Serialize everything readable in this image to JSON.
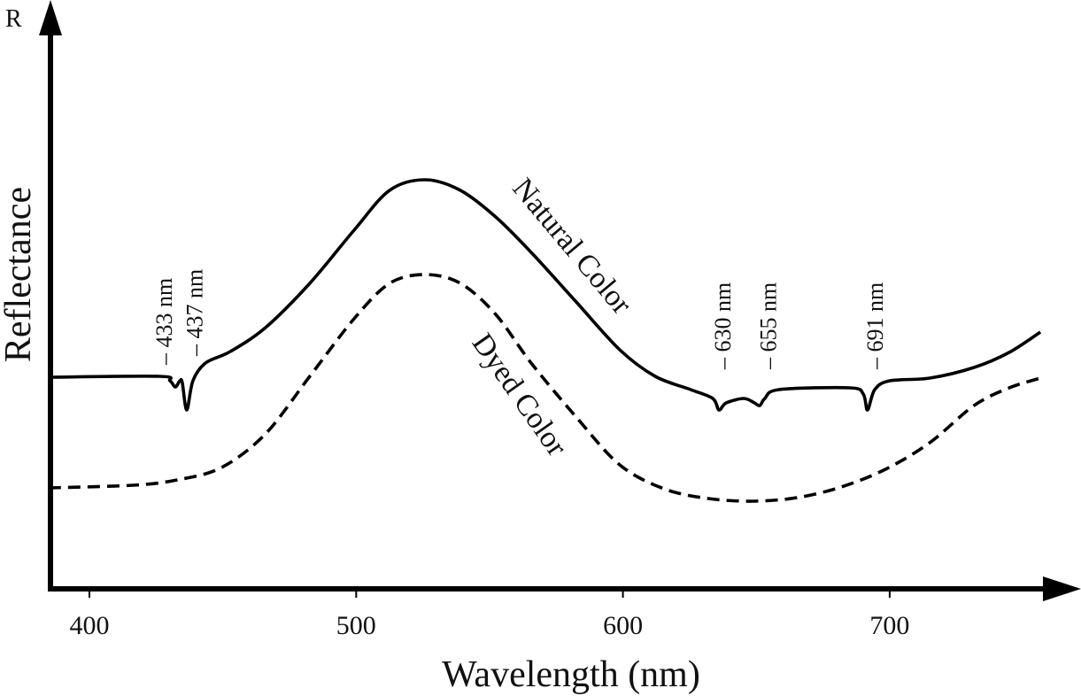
{
  "chart_data": {
    "type": "line",
    "title": "",
    "xlabel": "Wavelength (nm)",
    "ylabel": "Reflectance",
    "y_axis_symbol": "R",
    "xlim": [
      385,
      757
    ],
    "ylim": [
      0,
      100
    ],
    "y_units": "relative (no ticks shown)",
    "x_ticks": [
      400,
      500,
      600,
      700
    ],
    "x_tick_labels": [
      "400",
      "500",
      "600",
      "700"
    ],
    "grid": false,
    "series": [
      {
        "name": "Natural Color",
        "style": "solid",
        "color": "#000000",
        "x": [
          384.7,
          426.2,
          430.2,
          432.2,
          433.9,
          434.8,
          436.5,
          438.8,
          443.5,
          452.8,
          466.0,
          482.6,
          499.2,
          512.5,
          525.8,
          539.1,
          552.3,
          565.6,
          582.2,
          598.8,
          612.1,
          625.4,
          633.7,
          636.0,
          638.7,
          645.3,
          649.3,
          651.3,
          653.2,
          658.5,
          685.1,
          690.1,
          691.7,
          694.4,
          700.0,
          715.0,
          731.6,
          744.8,
          756.5
        ],
        "y": [
          47.8,
          48.0,
          47.0,
          45.6,
          47.0,
          46.6,
          40.4,
          47.0,
          51.0,
          53.6,
          59.0,
          69.0,
          81.0,
          90.0,
          92.4,
          90.0,
          84.0,
          76.0,
          65.0,
          54.0,
          48.0,
          45.0,
          43.0,
          40.4,
          42.0,
          43.0,
          42.0,
          41.4,
          43.0,
          45.0,
          45.4,
          44.0,
          40.4,
          45.0,
          47.0,
          47.6,
          50.0,
          53.4,
          58.0
        ]
      },
      {
        "name": "Dyed Color",
        "style": "dashed",
        "color": "#000000",
        "x": [
          384.7,
          416.3,
          432.9,
          449.5,
          466.0,
          482.6,
          499.2,
          512.5,
          525.8,
          539.1,
          552.3,
          565.6,
          582.2,
          598.8,
          615.4,
          632.0,
          648.6,
          665.2,
          681.8,
          698.4,
          715.0,
          731.6,
          744.8,
          756.5
        ],
        "y": [
          22.8,
          23.4,
          24.6,
          27.4,
          35.0,
          48.0,
          61.0,
          69.0,
          71.0,
          69.0,
          62.0,
          51.0,
          39.0,
          28.0,
          22.6,
          20.4,
          19.8,
          20.6,
          23.0,
          27.0,
          33.0,
          41.4,
          45.4,
          47.6
        ]
      }
    ],
    "annotations": [
      {
        "text": "– 433 nm",
        "x": 427.5,
        "y": 49
      },
      {
        "text": "– 437 nm",
        "x": 439,
        "y": 51
      },
      {
        "text": "– 630 nm",
        "x": 637,
        "y": 48
      },
      {
        "text": "– 655 nm",
        "x": 654,
        "y": 48
      },
      {
        "text": "– 691 nm",
        "x": 694,
        "y": 48
      }
    ],
    "series_labels": [
      {
        "text": "Natural Color",
        "x": 581,
        "y": 76
      },
      {
        "text": "Dyed Color",
        "x": 561,
        "y": 44
      }
    ]
  }
}
